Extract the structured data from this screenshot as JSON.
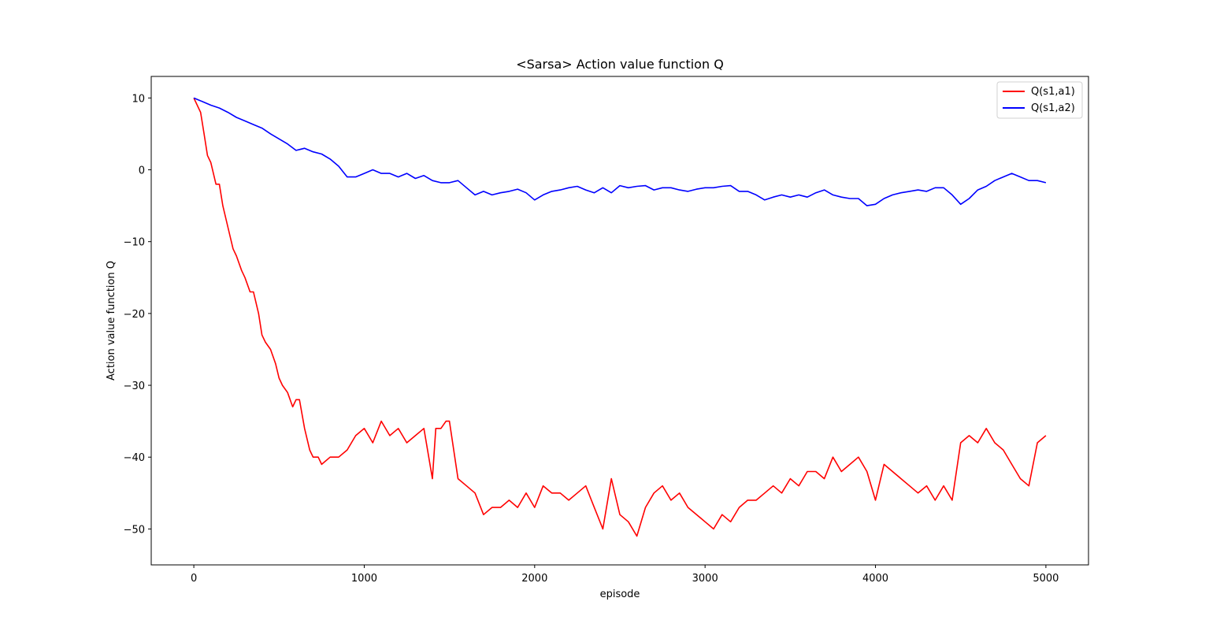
{
  "chart_data": {
    "type": "line",
    "title": "<Sarsa> Action value function Q",
    "xlabel": "episode",
    "ylabel": "Action value function Q",
    "xlim": [
      -250,
      5250
    ],
    "ylim": [
      -55,
      13
    ],
    "xticks": [
      0,
      1000,
      2000,
      3000,
      4000,
      5000
    ],
    "yticks": [
      10,
      0,
      -10,
      -20,
      -30,
      -40,
      -50
    ],
    "xtick_labels": [
      "0",
      "1000",
      "2000",
      "3000",
      "4000",
      "5000"
    ],
    "ytick_labels": [
      "10",
      "0",
      "−10",
      "−20",
      "−30",
      "−40",
      "−50"
    ],
    "grid": false,
    "legend_position": "top-right",
    "series": [
      {
        "name": "Q(s1,a1)",
        "color": "#ff0000",
        "x": [
          0,
          40,
          60,
          80,
          100,
          130,
          150,
          170,
          200,
          230,
          250,
          280,
          300,
          330,
          350,
          380,
          400,
          420,
          450,
          480,
          500,
          520,
          550,
          580,
          600,
          620,
          650,
          680,
          700,
          730,
          750,
          800,
          850,
          900,
          950,
          1000,
          1050,
          1100,
          1150,
          1200,
          1250,
          1300,
          1350,
          1400,
          1420,
          1450,
          1480,
          1500,
          1550,
          1600,
          1650,
          1700,
          1750,
          1800,
          1850,
          1900,
          1950,
          2000,
          2050,
          2100,
          2150,
          2200,
          2250,
          2300,
          2350,
          2400,
          2450,
          2500,
          2550,
          2600,
          2650,
          2700,
          2750,
          2800,
          2850,
          2900,
          2950,
          3000,
          3050,
          3100,
          3150,
          3200,
          3250,
          3300,
          3350,
          3400,
          3450,
          3500,
          3550,
          3600,
          3650,
          3700,
          3750,
          3800,
          3850,
          3900,
          3950,
          4000,
          4050,
          4100,
          4150,
          4200,
          4250,
          4300,
          4350,
          4400,
          4450,
          4500,
          4550,
          4600,
          4650,
          4700,
          4750,
          4800,
          4850,
          4900,
          4950,
          5000
        ],
        "y": [
          10,
          8,
          5,
          2,
          1,
          -2,
          -2,
          -5,
          -8,
          -11,
          -12,
          -14,
          -15,
          -17,
          -17,
          -20,
          -23,
          -24,
          -25,
          -27,
          -29,
          -30,
          -31,
          -33,
          -32,
          -32,
          -36,
          -39,
          -40,
          -40,
          -41,
          -40,
          -40,
          -39,
          -37,
          -36,
          -38,
          -35,
          -37,
          -36,
          -38,
          -37,
          -36,
          -43,
          -36,
          -36,
          -35,
          -35,
          -43,
          -44,
          -45,
          -48,
          -47,
          -47,
          -46,
          -47,
          -45,
          -47,
          -44,
          -45,
          -45,
          -46,
          -45,
          -44,
          -47,
          -50,
          -43,
          -48,
          -49,
          -51,
          -47,
          -45,
          -44,
          -46,
          -45,
          -47,
          -48,
          -49,
          -50,
          -48,
          -49,
          -47,
          -46,
          -46,
          -45,
          -44,
          -45,
          -43,
          -44,
          -42,
          -42,
          -43,
          -40,
          -42,
          -41,
          -40,
          -42,
          -46,
          -41,
          -42,
          -43,
          -44,
          -45,
          -44,
          -46,
          -44,
          -46,
          -38,
          -37,
          -38,
          -36,
          -38,
          -39,
          -41,
          -43,
          -44,
          -38,
          -37
        ]
      },
      {
        "name": "Q(s1,a2)",
        "color": "#0000ff",
        "x": [
          0,
          50,
          100,
          150,
          200,
          250,
          300,
          350,
          400,
          450,
          500,
          550,
          600,
          650,
          700,
          750,
          800,
          850,
          900,
          950,
          1000,
          1050,
          1100,
          1150,
          1200,
          1250,
          1300,
          1350,
          1400,
          1450,
          1500,
          1550,
          1600,
          1650,
          1700,
          1750,
          1800,
          1850,
          1900,
          1950,
          2000,
          2050,
          2100,
          2150,
          2200,
          2250,
          2300,
          2350,
          2400,
          2450,
          2500,
          2550,
          2600,
          2650,
          2700,
          2750,
          2800,
          2850,
          2900,
          2950,
          3000,
          3050,
          3100,
          3150,
          3200,
          3250,
          3300,
          3350,
          3400,
          3450,
          3500,
          3550,
          3600,
          3650,
          3700,
          3750,
          3800,
          3850,
          3900,
          3950,
          4000,
          4050,
          4100,
          4150,
          4200,
          4250,
          4300,
          4350,
          4400,
          4450,
          4500,
          4550,
          4600,
          4650,
          4700,
          4750,
          4800,
          4850,
          4900,
          4950,
          5000
        ],
        "y": [
          10,
          9.5,
          9,
          8.6,
          8,
          7.3,
          6.8,
          6.3,
          5.8,
          5,
          4.3,
          3.6,
          2.7,
          3,
          2.5,
          2.2,
          1.5,
          0.5,
          -1,
          -1,
          -0.5,
          0,
          -0.5,
          -0.5,
          -1,
          -0.5,
          -1.2,
          -0.8,
          -1.5,
          -1.8,
          -1.8,
          -1.5,
          -2.5,
          -3.5,
          -3,
          -3.5,
          -3.2,
          -3,
          -2.7,
          -3.2,
          -4.2,
          -3.5,
          -3,
          -2.8,
          -2.5,
          -2.3,
          -2.8,
          -3.2,
          -2.5,
          -3.2,
          -2.2,
          -2.5,
          -2.3,
          -2.2,
          -2.8,
          -2.5,
          -2.5,
          -2.8,
          -3,
          -2.7,
          -2.5,
          -2.5,
          -2.3,
          -2.2,
          -3,
          -3,
          -3.5,
          -4.2,
          -3.8,
          -3.5,
          -3.8,
          -3.5,
          -3.8,
          -3.2,
          -2.8,
          -3.5,
          -3.8,
          -4,
          -4,
          -5,
          -4.8,
          -4,
          -3.5,
          -3.2,
          -3,
          -2.8,
          -3,
          -2.5,
          -2.5,
          -3.5,
          -4.8,
          -4,
          -2.8,
          -2.3,
          -1.5,
          -1,
          -0.5,
          -1,
          -1.5,
          -1.5,
          -1.8
        ]
      }
    ]
  }
}
